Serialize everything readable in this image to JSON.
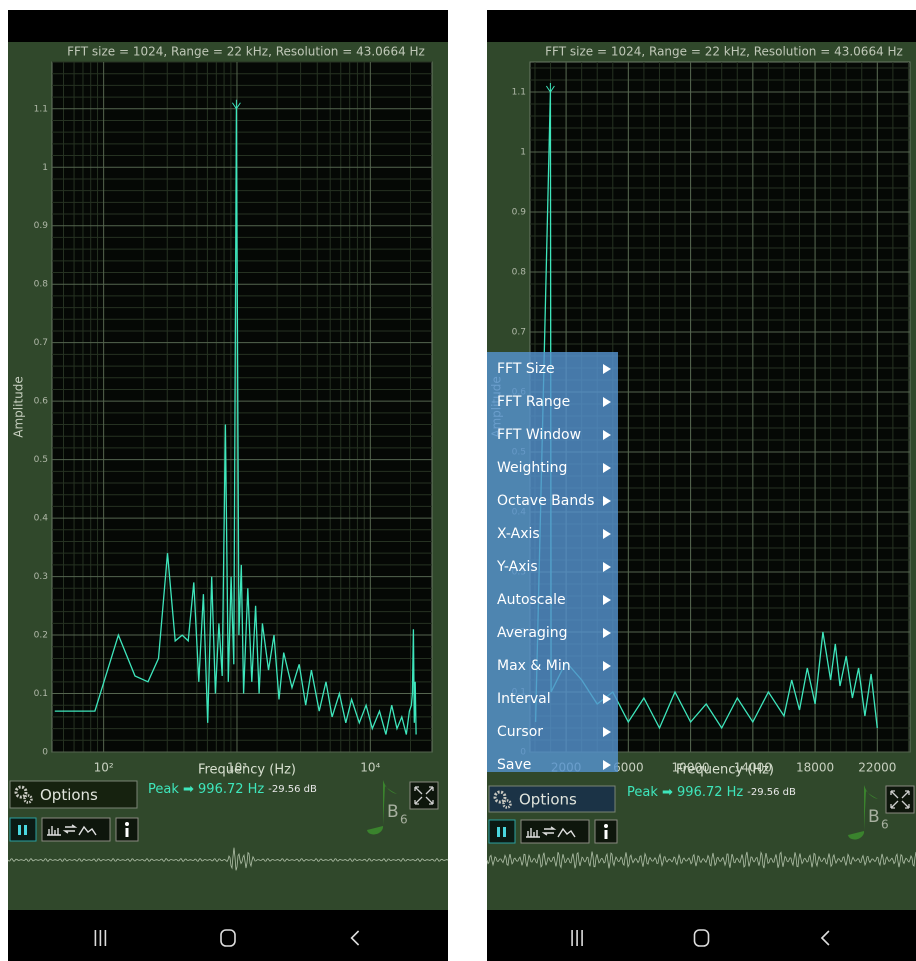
{
  "chart_data": [
    {
      "type": "line",
      "title": "FFT size = 1024, Range = 22 kHz, Resolution = 43.0664 Hz",
      "x_label": "Frequency (Hz)",
      "y_label": "Amplitude",
      "log_x": true,
      "grid": true,
      "xlim": [
        41,
        29000
      ],
      "xticks": [
        {
          "value": 100,
          "label": "10²"
        },
        {
          "value": 1000,
          "label": "10³"
        },
        {
          "value": 10000,
          "label": "10⁴"
        }
      ],
      "ylim": [
        0,
        1.18
      ],
      "yticks": [
        0,
        0.1,
        0.2,
        0.3,
        0.4,
        0.5,
        0.6,
        0.7,
        0.8,
        0.9,
        1,
        1.1
      ],
      "series": [
        {
          "color": "#3ee6bc",
          "x": [
            43,
            86,
            129,
            172,
            215,
            258,
            301,
            344,
            388,
            431,
            474,
            517,
            560,
            603,
            646,
            689,
            732,
            775,
            818,
            861,
            904,
            947,
            990,
            1034,
            1077,
            1120,
            1206,
            1292,
            1378,
            1464,
            1550,
            1723,
            1895,
            2067,
            2240,
            2584,
            2928,
            3273,
            3617,
            4135,
            4651,
            5168,
            5857,
            6546,
            7235,
            8269,
            9302,
            10336,
            11714,
            13092,
            14470,
            15848,
            17226,
            18604,
            19638,
            20327,
            20671,
            21016,
            21360,
            21705,
            22050
          ],
          "values": [
            0.07,
            0.07,
            0.2,
            0.13,
            0.12,
            0.16,
            0.34,
            0.19,
            0.2,
            0.19,
            0.29,
            0.12,
            0.27,
            0.05,
            0.3,
            0.1,
            0.22,
            0.13,
            0.56,
            0.12,
            0.3,
            0.15,
            1.1,
            0.2,
            0.32,
            0.1,
            0.28,
            0.12,
            0.25,
            0.1,
            0.22,
            0.14,
            0.2,
            0.09,
            0.17,
            0.11,
            0.15,
            0.08,
            0.14,
            0.07,
            0.12,
            0.06,
            0.1,
            0.05,
            0.09,
            0.05,
            0.08,
            0.04,
            0.07,
            0.03,
            0.08,
            0.04,
            0.06,
            0.03,
            0.07,
            0.08,
            0.1,
            0.21,
            0.05,
            0.12,
            0.03
          ]
        }
      ]
    },
    {
      "type": "line",
      "title": "FFT size = 1024, Range = 22 kHz, Resolution = 43.0664 Hz",
      "x_label": "Frequency (Hz)",
      "y_label": "Amplitude",
      "log_x": false,
      "grid": true,
      "xlim": [
        -320,
        24100
      ],
      "xticks": [
        2000,
        6000,
        10000,
        14000,
        18000,
        22000
      ],
      "ylim": [
        0,
        1.15
      ],
      "yticks": [
        0,
        0.1,
        0.2,
        0.3,
        0.4,
        0.5,
        0.6,
        0.7,
        0.8,
        0.9,
        1,
        1.1
      ],
      "series": [
        {
          "color": "#3ee6bc",
          "x": [
            43,
            990,
            1034,
            2000,
            3000,
            4000,
            5000,
            6000,
            7000,
            8000,
            9000,
            10000,
            11000,
            12000,
            13000,
            14000,
            15000,
            16000,
            16500,
            17000,
            17500,
            18000,
            18500,
            19000,
            19300,
            19600,
            20000,
            20400,
            20800,
            21200,
            21600,
            22000
          ],
          "values": [
            0.05,
            1.1,
            0.1,
            0.15,
            0.12,
            0.08,
            0.1,
            0.05,
            0.09,
            0.04,
            0.1,
            0.05,
            0.08,
            0.04,
            0.09,
            0.05,
            0.1,
            0.06,
            0.12,
            0.07,
            0.14,
            0.08,
            0.2,
            0.12,
            0.18,
            0.11,
            0.16,
            0.09,
            0.14,
            0.06,
            0.13,
            0.04
          ]
        }
      ]
    }
  ],
  "screens": [
    {
      "options": "Options",
      "peak": "Peak ➡ 996.72 Hz",
      "peak_db": "-29.56 dB",
      "note": "B",
      "note_octave": "6"
    },
    {
      "options": "Options",
      "peak": "Peak ➡ 996.72 Hz",
      "peak_db": "-29.56 dB",
      "note": "B",
      "note_octave": "6",
      "menu": [
        "FFT Size",
        "FFT Range",
        "FFT Window",
        "Weighting",
        "Octave Bands",
        "X-Axis",
        "Y-Axis",
        "Autoscale",
        "Averaging",
        "Max & Min",
        "Interval",
        "Cursor",
        "Save"
      ]
    }
  ]
}
